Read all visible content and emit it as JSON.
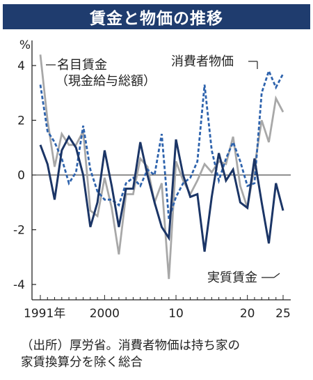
{
  "title": "賃金と物価の推移",
  "footnote": {
    "line1": "（出所）厚労省。消費者物価は持ち家の",
    "line2": "家賃換算分を除く総合"
  },
  "chart_data": {
    "type": "line",
    "title": "賃金と物価の推移",
    "unit_label": "%",
    "x_tick_labels": [
      "1991年",
      "2000",
      "10",
      "20",
      "25"
    ],
    "x_tick_years": [
      1991,
      2000,
      2010,
      2020,
      2025
    ],
    "xlim": [
      1991,
      2025
    ],
    "ylim": [
      -4.5,
      4.5
    ],
    "y_ticks": [
      4,
      2,
      0,
      -2,
      -4
    ],
    "y_tick_labels": [
      "4",
      "2",
      "0",
      "-2",
      "-4"
    ],
    "grid": false,
    "x": [
      1991,
      1992,
      1993,
      1994,
      1995,
      1996,
      1997,
      1998,
      1999,
      2000,
      2001,
      2002,
      2003,
      2004,
      2005,
      2006,
      2007,
      2008,
      2009,
      2010,
      2011,
      2012,
      2013,
      2014,
      2015,
      2016,
      2017,
      2018,
      2019,
      2020,
      2021,
      2022,
      2023,
      2024,
      2025
    ],
    "series": [
      {
        "name": "名目賃金（現金給与総額）",
        "label_lines": [
          "名目賃金",
          "（現金給与総額）"
        ],
        "color": "#a8a8a8",
        "style": "solid",
        "values": [
          4.4,
          2.0,
          0.3,
          1.5,
          1.1,
          1.1,
          1.6,
          -1.3,
          -1.5,
          -0.1,
          -1.2,
          -2.9,
          -0.7,
          -0.7,
          0.6,
          0.3,
          -1.0,
          -0.3,
          -3.8,
          0.5,
          -0.2,
          -0.7,
          -0.2,
          0.4,
          0.1,
          0.5,
          0.4,
          1.4,
          -0.4,
          -1.2,
          0.3,
          2.0,
          1.2,
          2.8,
          2.3
        ]
      },
      {
        "name": "消費者物価",
        "label_lines": [
          "消費者物価"
        ],
        "color": "#2e63ad",
        "style": "dashed",
        "values": [
          3.3,
          1.6,
          1.2,
          0.6,
          -0.3,
          0.1,
          1.8,
          0.2,
          -0.6,
          -0.9,
          -0.9,
          -1.1,
          -0.3,
          -0.1,
          -0.4,
          0.2,
          0.0,
          1.5,
          -1.6,
          -0.8,
          -0.3,
          -0.1,
          0.5,
          3.3,
          0.9,
          -0.2,
          0.6,
          1.2,
          0.5,
          -0.4,
          -0.3,
          3.0,
          3.8,
          3.2,
          3.7
        ]
      },
      {
        "name": "実質賃金",
        "label_lines": [
          "実質賃金"
        ],
        "color": "#1b3566",
        "style": "solid",
        "values": [
          1.1,
          0.4,
          -0.9,
          0.9,
          1.4,
          1.0,
          0.0,
          -1.9,
          -1.0,
          0.9,
          -0.4,
          -1.9,
          -0.5,
          -0.5,
          1.2,
          0.0,
          -1.0,
          -1.9,
          -2.3,
          1.3,
          0.0,
          -0.8,
          -0.7,
          -2.8,
          -0.8,
          0.8,
          -0.2,
          0.2,
          -1.0,
          -1.2,
          0.6,
          -1.0,
          -2.5,
          -0.3,
          -1.3
        ]
      }
    ]
  }
}
